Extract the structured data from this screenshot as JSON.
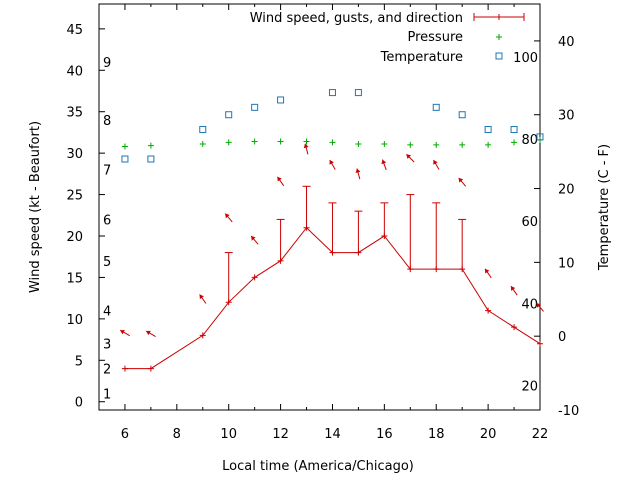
{
  "chart_data": {
    "type": "line",
    "xlabel": "Local time (America/Chicago)",
    "ylabel": "Wind speed (kt - Beaufort)",
    "y2label": "Temperature (C - F)",
    "xlim": [
      5,
      22
    ],
    "ylim": [
      -1,
      48
    ],
    "y2lim": [
      -10,
      45
    ],
    "x_ticks": [
      6,
      8,
      10,
      12,
      14,
      16,
      18,
      20,
      22
    ],
    "y_ticks": [
      0,
      5,
      10,
      15,
      20,
      25,
      30,
      35,
      40,
      45
    ],
    "y2_ticks": [
      -10,
      0,
      10,
      20,
      30,
      40
    ],
    "beaufort_labels": [
      {
        "label": "1",
        "y": 1
      },
      {
        "label": "2",
        "y": 4
      },
      {
        "label": "3",
        "y": 7
      },
      {
        "label": "4",
        "y": 11
      },
      {
        "label": "5",
        "y": 17
      },
      {
        "label": "6",
        "y": 22
      },
      {
        "label": "7",
        "y": 28
      },
      {
        "label": "8",
        "y": 34
      },
      {
        "label": "9",
        "y": 41
      }
    ],
    "fahrenheit_labels": [
      {
        "label": "20",
        "y2": -6.7
      },
      {
        "label": "40",
        "y2": 4.4
      },
      {
        "label": "60",
        "y2": 15.6
      },
      {
        "label": "80",
        "y2": 26.7
      },
      {
        "label": "100",
        "y2": 37.8
      }
    ],
    "legend_position": "top-right",
    "series": [
      {
        "name": "Wind speed, gusts, and direction",
        "color": "#cc0000",
        "x": [
          6,
          7,
          9,
          10,
          11,
          12,
          13,
          14,
          15,
          16,
          17,
          18,
          19,
          20,
          21,
          22
        ],
        "values": [
          4,
          4,
          8,
          12,
          15,
          17,
          21,
          18,
          18,
          20,
          16,
          16,
          16,
          11,
          9,
          7
        ],
        "gusts": [
          null,
          null,
          null,
          18,
          null,
          22,
          26,
          24,
          23,
          24,
          25,
          24,
          22,
          null,
          null,
          null
        ],
        "arrow_y": [
          8.3,
          8.2,
          12.4,
          22.2,
          19.5,
          26.6,
          30.5,
          28.6,
          27.5,
          28.6,
          29.4,
          28.6,
          26.5,
          15.5,
          13.4,
          11.4
        ],
        "direction_deg": [
          120,
          120,
          145,
          140,
          140,
          145,
          165,
          150,
          165,
          160,
          135,
          150,
          140,
          145,
          145,
          140
        ]
      },
      {
        "name": "Pressure",
        "color": "#00aa00",
        "x": [
          6,
          7,
          9,
          10,
          11,
          12,
          13,
          14,
          15,
          16,
          17,
          18,
          19,
          20,
          21,
          22
        ],
        "values": [
          30.8,
          30.9,
          31.1,
          31.3,
          31.4,
          31.4,
          31.4,
          31.3,
          31.1,
          31.1,
          31.0,
          31.0,
          31.0,
          31.0,
          31.3,
          31.6
        ]
      },
      {
        "name": "Temperature",
        "color": "#1f77b4",
        "x": [
          6,
          7,
          9,
          10,
          11,
          12,
          13,
          14,
          15,
          16,
          17,
          18,
          19,
          20,
          21,
          22
        ],
        "y2_values": [
          24,
          24,
          28,
          30,
          31,
          32,
          null,
          33,
          33,
          null,
          null,
          31,
          30,
          28,
          28,
          27
        ]
      }
    ]
  }
}
